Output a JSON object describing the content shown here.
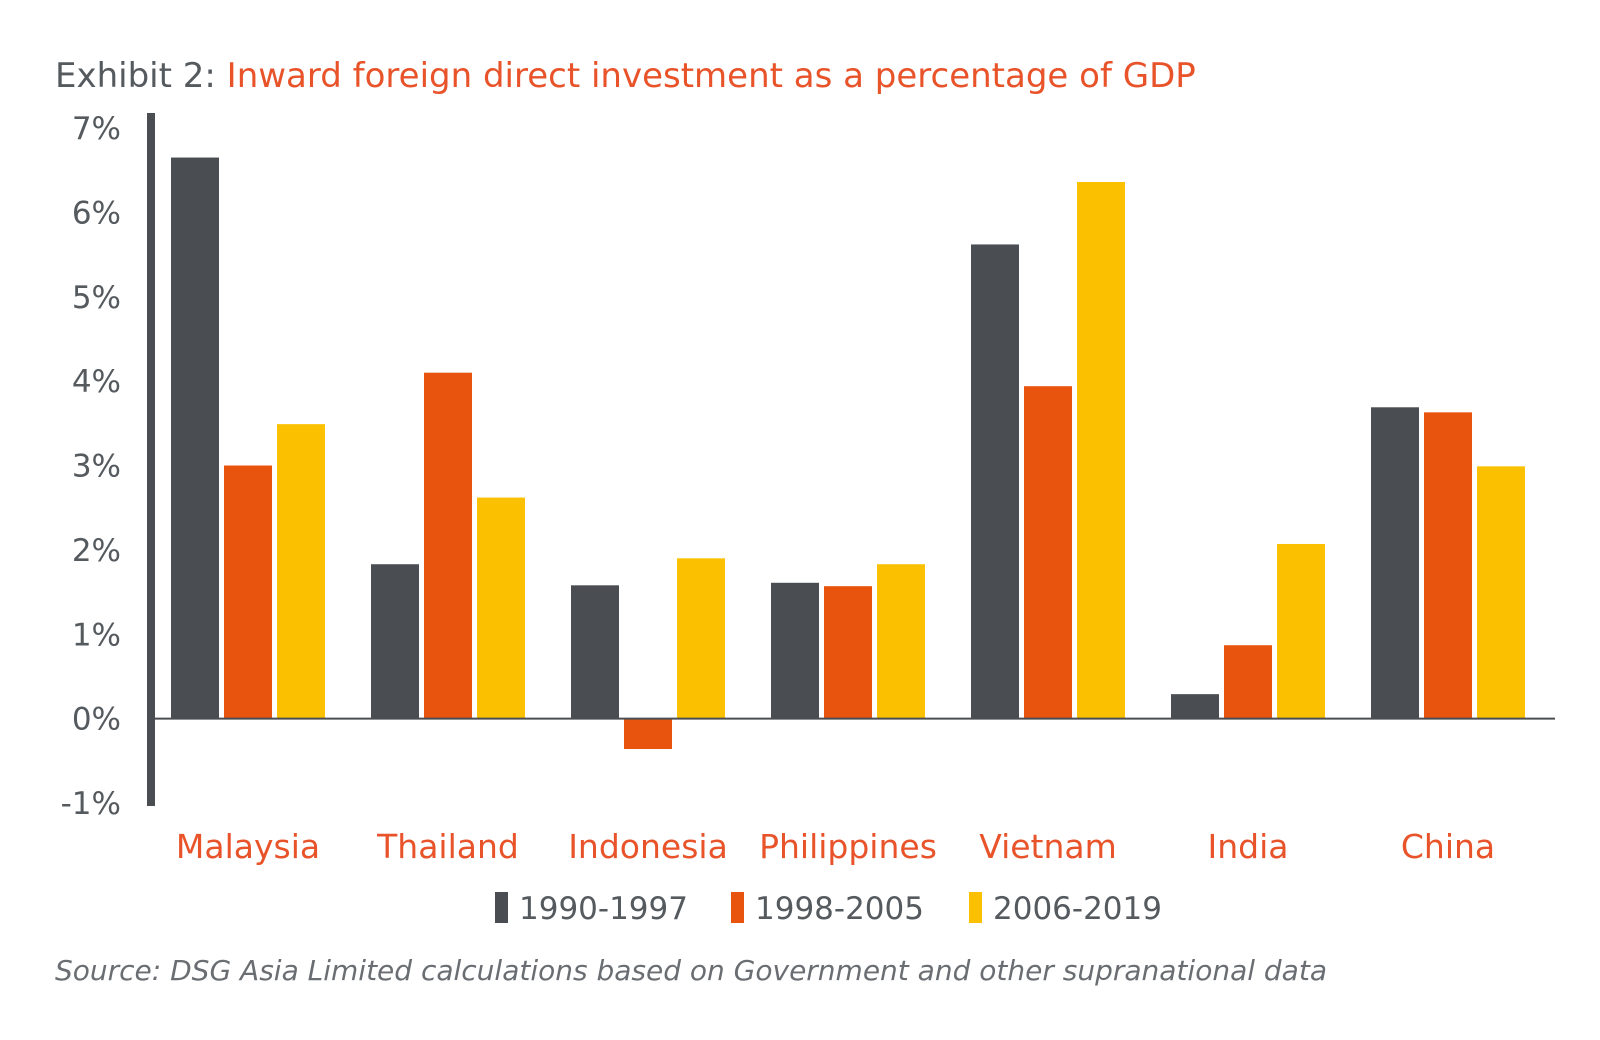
{
  "chart_data": {
    "type": "bar",
    "title_prefix": "Exhibit 2: ",
    "title": "Inward foreign direct investment as a percentage of GDP",
    "categories": [
      "Malaysia",
      "Thailand",
      "Indonesia",
      "Philippines",
      "Vietnam",
      "India",
      "China"
    ],
    "series": [
      {
        "name": "1990-1997",
        "color": "#4a4e52",
        "values": [
          6.65,
          1.83,
          1.58,
          1.61,
          5.62,
          0.29,
          3.69
        ]
      },
      {
        "name": "1998-2005",
        "color": "#e8530e",
        "values": [
          3.0,
          4.1,
          -0.36,
          1.57,
          3.94,
          0.87,
          3.63
        ]
      },
      {
        "name": "2006-2019",
        "color": "#fbc100",
        "values": [
          3.49,
          2.62,
          1.9,
          1.83,
          6.36,
          2.07,
          2.99
        ]
      }
    ],
    "yticks": [
      "7%",
      "6%",
      "5%",
      "4%",
      "3%",
      "2%",
      "1%",
      "0%",
      "-1%"
    ],
    "ylim": [
      -1,
      7
    ],
    "legend_position": "bottom",
    "grid": false
  },
  "source_note": "Source: DSG Asia Limited calculations based on Government and other supranational data"
}
